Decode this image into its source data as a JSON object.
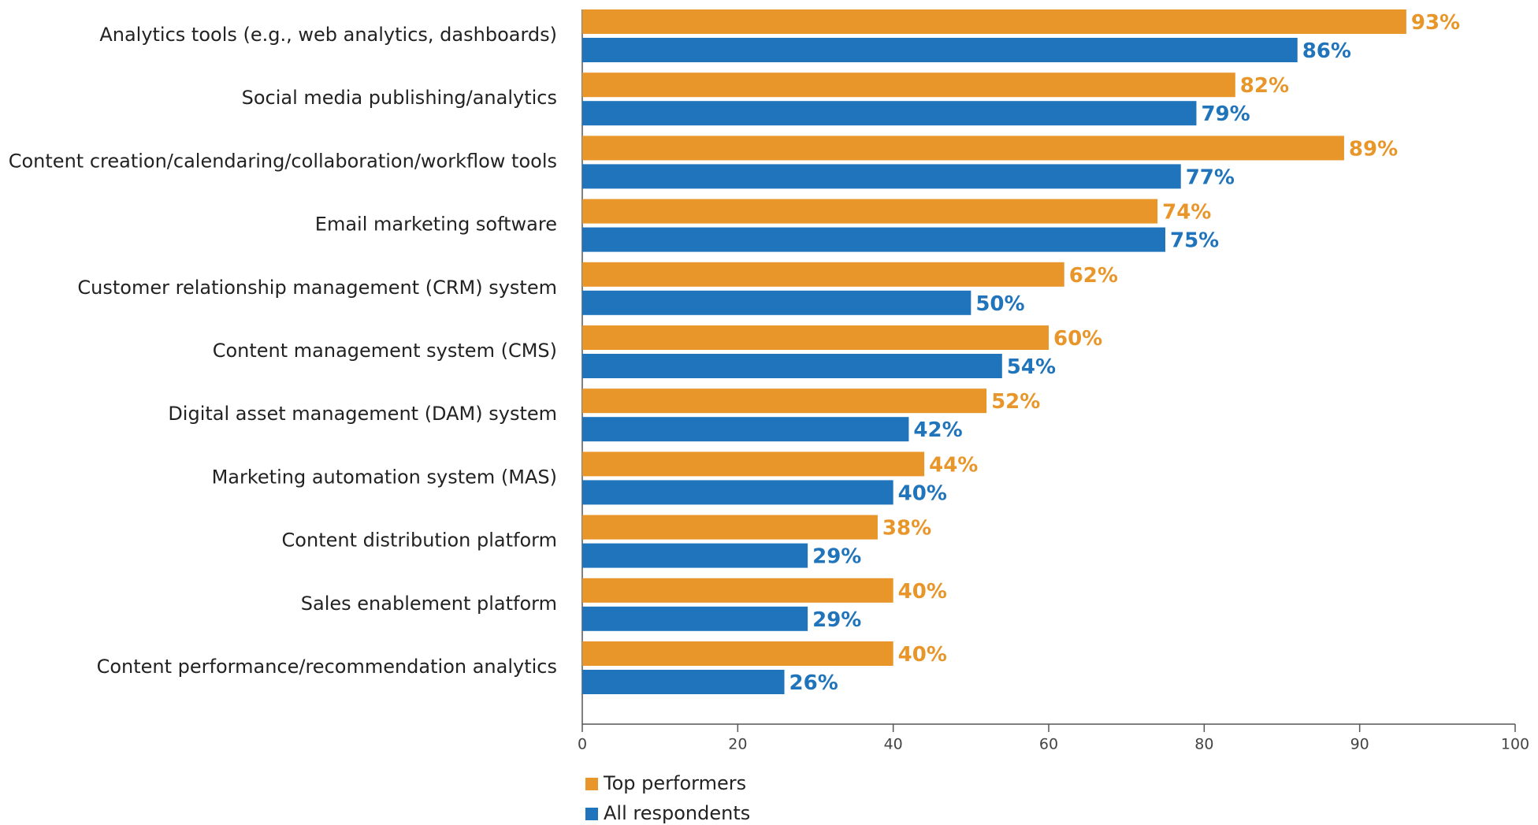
{
  "chart_data": {
    "type": "hbar",
    "categories": [
      "Analytics tools (e.g., web analytics, dashboards)",
      "Social media publishing/analytics",
      "Content creation/calendaring/collaboration/workflow tools",
      "Email marketing software",
      "Customer relationship management (CRM) system",
      "Content management system (CMS)",
      "Digital asset management (DAM) system",
      "Marketing automation system (MAS)",
      "Content distribution platform",
      "Sales enablement platform",
      "Content performance/recommendation analytics"
    ],
    "series": [
      {
        "name": "Top performers",
        "color": "#e8962a",
        "values": [
          93,
          82,
          89,
          74,
          62,
          60,
          52,
          44,
          38,
          40,
          40
        ],
        "value_labels": [
          "93%",
          "82%",
          "89%",
          "74%",
          "62%",
          "60%",
          "52%",
          "44%",
          "38%",
          "40%",
          "40%"
        ]
      },
      {
        "name": "All respondents",
        "color": "#1f74bb",
        "values": [
          86,
          79,
          77,
          75,
          50,
          54,
          42,
          40,
          29,
          29,
          26
        ],
        "value_labels": [
          "86%",
          "79%",
          "77%",
          "75%",
          "50%",
          "54%",
          "42%",
          "40%",
          "29%",
          "29%",
          "26%"
        ]
      }
    ],
    "xlim": [
      0,
      100
    ],
    "xticks": [
      0,
      20,
      40,
      60,
      80,
      90,
      100
    ]
  }
}
